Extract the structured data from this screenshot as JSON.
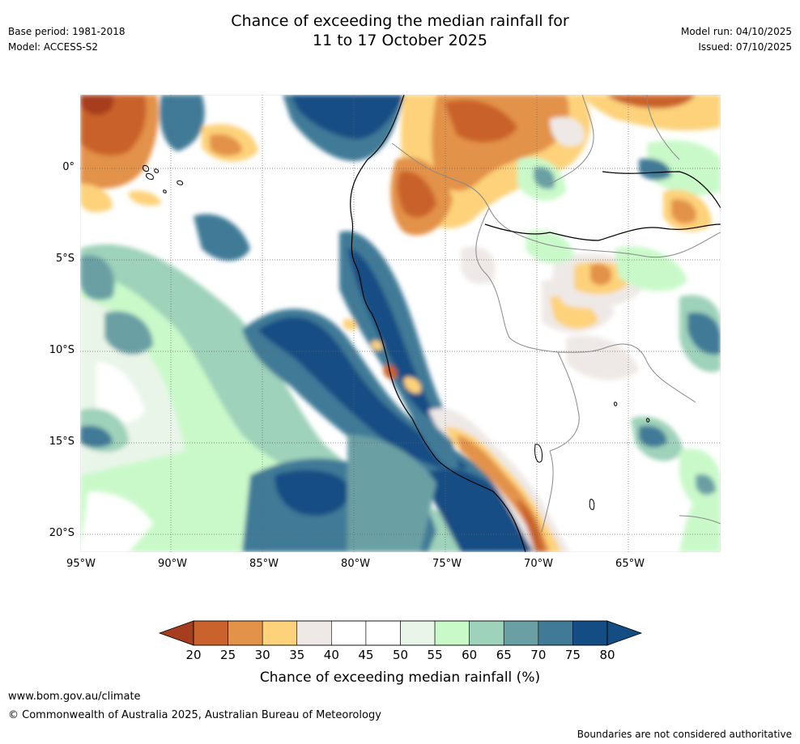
{
  "header": {
    "title_line1": "Chance of exceeding the median rainfall for",
    "title_line2": "11 to 17 October 2025",
    "base_period": "Base period: 1981-2018",
    "model": "Model: ACCESS-S2",
    "model_run": "Model run: 04/10/2025",
    "issued": "Issued: 07/10/2025"
  },
  "map": {
    "lat_labels": [
      "0°",
      "5°S",
      "10°S",
      "15°S",
      "20°S"
    ],
    "lon_labels": [
      "95°W",
      "90°W",
      "85°W",
      "80°W",
      "75°W",
      "70°W",
      "65°W"
    ]
  },
  "colorbar": {
    "ticks": [
      "20",
      "25",
      "30",
      "35",
      "40",
      "45",
      "50",
      "55",
      "60",
      "65",
      "70",
      "75",
      "80"
    ],
    "colors": [
      "#a63d1e",
      "#c9622c",
      "#e3924a",
      "#fdd27a",
      "#eee9e6",
      "#ffffff",
      "#ffffff",
      "#e9f5e9",
      "#c9f9c9",
      "#9ed2ba",
      "#6aa0a4",
      "#417a97",
      "#144d84"
    ],
    "title": "Chance of exceeding median rainfall (%)"
  },
  "footer": {
    "website": "www.bom.gov.au/climate",
    "copyright": "© Commonwealth of Australia 2025, Australian Bureau of Meteorology",
    "disclaimer": "Boundaries are not considered authoritative"
  }
}
